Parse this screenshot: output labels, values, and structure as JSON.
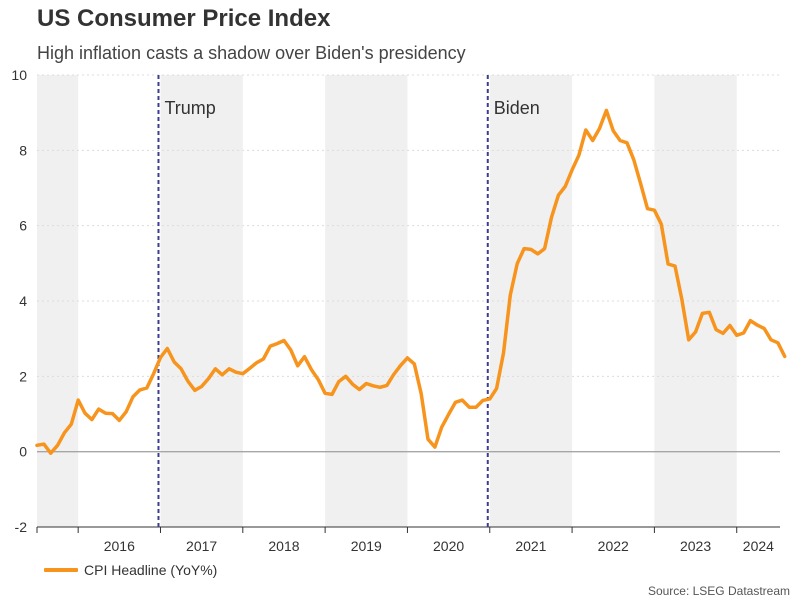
{
  "title": "US Consumer Price Index",
  "subtitle": "High inflation casts a shadow over Biden's presidency",
  "source": "Source: LSEG Datastream",
  "colors": {
    "line": "#f7941d",
    "band": "#f0f0f0",
    "marker": "#3d3d8f",
    "zero_line": "#a6a6a6",
    "grid": "#dcdcdc"
  },
  "chart_data": {
    "type": "line",
    "title": "US Consumer Price Index",
    "subtitle": "High inflation casts a shadow over Biden's presidency",
    "xlabel": "",
    "ylabel": "",
    "ylim": [
      -2,
      10
    ],
    "yticks": [
      -2,
      0,
      2,
      4,
      6,
      8,
      10
    ],
    "xlim": [
      "2015-07",
      "2024-08"
    ],
    "year_labels": [
      "2016",
      "2017",
      "2018",
      "2019",
      "2020",
      "2021",
      "2022",
      "2023",
      "2024"
    ],
    "shaded_years": [
      "2015",
      "2017",
      "2019",
      "2021",
      "2023"
    ],
    "grid": "horizontal-dotted",
    "legend_position": "bottom-left",
    "annotations": [
      {
        "label": "Trump",
        "date": "2017-01"
      },
      {
        "label": "Biden",
        "date": "2021-01"
      }
    ],
    "series": [
      {
        "name": "CPI Headline (YoY%)",
        "start": "2015-07",
        "frequency": "monthly",
        "values": [
          0.17,
          0.2,
          -0.04,
          0.17,
          0.5,
          0.73,
          1.37,
          1.02,
          0.85,
          1.13,
          1.02,
          1.01,
          0.83,
          1.06,
          1.46,
          1.64,
          1.69,
          2.07,
          2.5,
          2.74,
          2.38,
          2.2,
          1.87,
          1.63,
          1.73,
          1.94,
          2.2,
          2.04,
          2.2,
          2.11,
          2.07,
          2.21,
          2.36,
          2.46,
          2.8,
          2.87,
          2.95,
          2.7,
          2.28,
          2.52,
          2.18,
          1.91,
          1.55,
          1.52,
          1.86,
          2.0,
          1.79,
          1.65,
          1.81,
          1.75,
          1.71,
          1.76,
          2.05,
          2.29,
          2.49,
          2.33,
          1.54,
          0.33,
          0.12,
          0.65,
          0.99,
          1.31,
          1.37,
          1.18,
          1.18,
          1.36,
          1.4,
          1.68,
          2.62,
          4.16,
          4.99,
          5.39,
          5.37,
          5.25,
          5.39,
          6.22,
          6.81,
          7.04,
          7.48,
          7.87,
          8.54,
          8.26,
          8.58,
          9.06,
          8.52,
          8.26,
          8.2,
          7.75,
          7.11,
          6.45,
          6.41,
          6.04,
          4.98,
          4.93,
          4.05,
          2.97,
          3.18,
          3.67,
          3.7,
          3.24,
          3.14,
          3.35,
          3.09,
          3.15,
          3.48,
          3.36,
          3.27,
          2.97,
          2.89,
          2.53
        ]
      }
    ]
  },
  "legend": {
    "label": "CPI Headline (YoY%)"
  }
}
